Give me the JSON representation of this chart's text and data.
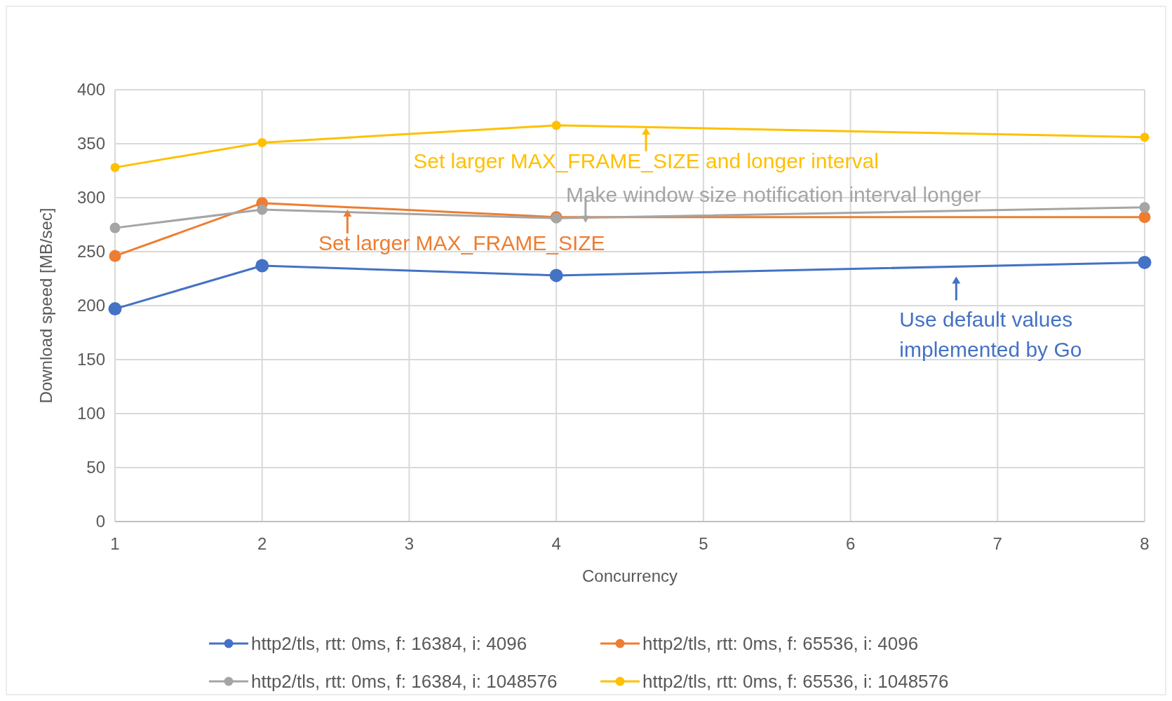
{
  "chart_data": {
    "type": "line",
    "xlabel": "Concurrency",
    "ylabel": "Download speed [MB/sec]",
    "x": [
      1,
      2,
      4,
      8
    ],
    "xlim": [
      1,
      8
    ],
    "xticks": [
      1,
      2,
      3,
      4,
      5,
      6,
      7,
      8
    ],
    "ylim": [
      0,
      400
    ],
    "yticks": [
      0,
      50,
      100,
      150,
      200,
      250,
      300,
      350,
      400
    ],
    "grid": true,
    "legend": "bottom",
    "marker": "circle",
    "line_style": "solid",
    "series": [
      {
        "name": "http2/tls, rtt: 0ms, f: 16384, i: 4096",
        "color": "#4472c4",
        "values": [
          197,
          237,
          228,
          240
        ]
      },
      {
        "name": "http2/tls, rtt: 0ms, f: 65536, i: 4096",
        "color": "#ed7d31",
        "values": [
          246,
          295,
          282,
          282
        ]
      },
      {
        "name": "http2/tls, rtt: 0ms, f: 16384, i: 1048576",
        "color": "#a5a5a5",
        "values": [
          272,
          289,
          281,
          291
        ]
      },
      {
        "name": "http2/tls, rtt: 0ms, f: 65536, i: 1048576",
        "color": "#ffc000",
        "values": [
          328,
          351,
          367,
          356
        ]
      }
    ],
    "annotations": [
      "Use default values\nimplemented by Go",
      {
        "text": "Set larger MAX_FRAME_SIZE",
        "x": 2.58,
        "y": 289
      },
      "Make window size notification interval longer",
      {
        "text": "Set larger MAX_FRAME_SIZE and longer interval",
        "x": 4.61,
        "y": 365
      }
    ]
  }
}
